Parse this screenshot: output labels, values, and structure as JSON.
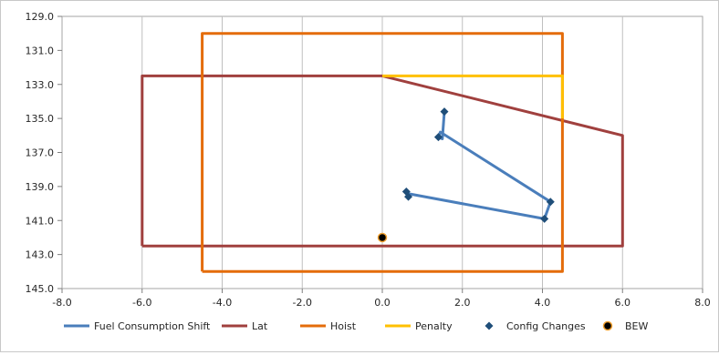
{
  "chart_data": {
    "type": "scatter",
    "title": "",
    "xlabel": "",
    "ylabel": "",
    "xlim": [
      -8.0,
      8.0
    ],
    "ylim": [
      145.0,
      129.0
    ],
    "y_axis_inverted": true,
    "x_ticks": [
      -8.0,
      -6.0,
      -4.0,
      -2.0,
      0.0,
      2.0,
      4.0,
      6.0,
      8.0
    ],
    "y_ticks": [
      129.0,
      131.0,
      133.0,
      135.0,
      137.0,
      139.0,
      141.0,
      143.0,
      145.0
    ],
    "x_tick_labels": [
      "-8.0",
      "-6.0",
      "-4.0",
      "-2.0",
      "0.0",
      "2.0",
      "4.0",
      "6.0",
      "8.0"
    ],
    "y_tick_labels": [
      "129.0",
      "131.0",
      "133.0",
      "135.0",
      "137.0",
      "139.0",
      "141.0",
      "143.0",
      "145.0"
    ],
    "grid": "vertical",
    "legend_position": "bottom",
    "series": [
      {
        "name": "Fuel Consumption Shift",
        "kind": "line",
        "color": "#4a7ebb",
        "points": [
          [
            1.55,
            134.6
          ],
          [
            1.5,
            136.2
          ],
          [
            1.4,
            136.1
          ],
          [
            1.45,
            135.8
          ],
          [
            4.2,
            139.9
          ],
          [
            4.05,
            140.9
          ],
          [
            0.6,
            139.4
          ],
          [
            0.65,
            139.6
          ],
          [
            0.6,
            139.2
          ]
        ]
      },
      {
        "name": "Lat",
        "kind": "line",
        "color": "#a0403e",
        "points": [
          [
            -6.0,
            142.5
          ],
          [
            -6.0,
            132.5
          ],
          [
            0.0,
            132.5
          ],
          [
            6.0,
            136.0
          ],
          [
            6.0,
            142.5
          ],
          [
            -6.0,
            142.5
          ]
        ]
      },
      {
        "name": "Hoist",
        "kind": "line",
        "color": "#e46c0a",
        "points": [
          [
            -4.5,
            144.0
          ],
          [
            -4.5,
            130.0
          ],
          [
            4.5,
            130.0
          ],
          [
            4.5,
            144.0
          ],
          [
            -4.5,
            144.0
          ]
        ]
      },
      {
        "name": "Penalty",
        "kind": "line",
        "color": "#ffc000",
        "points": [
          [
            0.0,
            132.5
          ],
          [
            4.5,
            132.5
          ],
          [
            4.5,
            135.0
          ]
        ]
      },
      {
        "name": "Config Changes",
        "kind": "marker-diamond",
        "color": "#1f4e79",
        "points": [
          [
            1.55,
            134.6
          ],
          [
            1.4,
            136.1
          ],
          [
            4.2,
            139.9
          ],
          [
            4.05,
            140.9
          ],
          [
            0.65,
            139.6
          ],
          [
            0.6,
            139.3
          ]
        ]
      },
      {
        "name": "BEW",
        "kind": "marker-circle",
        "color": "#000000",
        "fill": "#f0a030",
        "points": [
          [
            0.0,
            142.0
          ]
        ]
      }
    ]
  }
}
